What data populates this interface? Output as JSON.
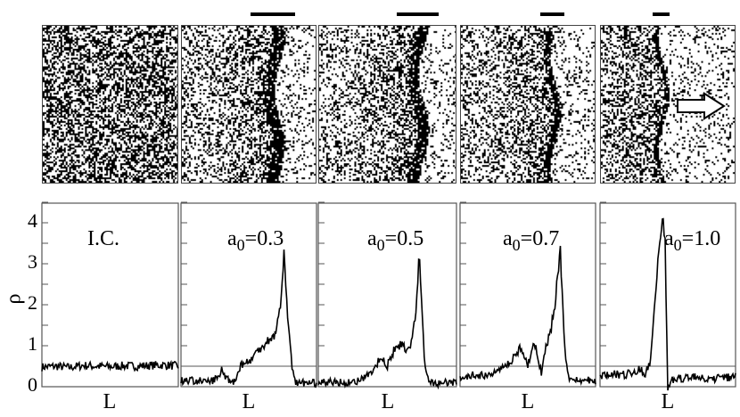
{
  "chart_data": [
    {
      "type": "line",
      "annotation": "I.C.",
      "ann_a": "",
      "ann_sub": "",
      "ann_val": "",
      "xlabel": "L",
      "ylabel": "ρ",
      "ylim": [
        0,
        4.5
      ],
      "yticks": [
        "0",
        "1",
        "2",
        "3",
        "4"
      ],
      "threshold": null,
      "x": [
        0,
        0.1,
        0.2,
        0.3,
        0.4,
        0.5,
        0.6,
        0.7,
        0.8,
        0.9,
        1
      ],
      "y": [
        0.48,
        0.5,
        0.47,
        0.52,
        0.5,
        0.49,
        0.51,
        0.5,
        0.52,
        0.53,
        0.5
      ]
    },
    {
      "type": "line",
      "annotation": "",
      "ann_a": "a",
      "ann_sub": "0",
      "ann_val": "=0.3",
      "xlabel": "L",
      "ylim": [
        0,
        4.5
      ],
      "threshold": 0.5,
      "width_bar": 0.33,
      "x": [
        0,
        0.1,
        0.2,
        0.27,
        0.3,
        0.34,
        0.4,
        0.44,
        0.5,
        0.55,
        0.6,
        0.65,
        0.7,
        0.73,
        0.76,
        0.79,
        0.82,
        0.85,
        0.9,
        1
      ],
      "y": [
        0.15,
        0.15,
        0.12,
        0.2,
        0.4,
        0.2,
        0.12,
        0.55,
        0.6,
        0.8,
        1.0,
        1.15,
        1.3,
        1.9,
        3.2,
        1.6,
        0.5,
        0.08,
        0.1,
        0.08
      ]
    },
    {
      "type": "line",
      "annotation": "",
      "ann_a": "a",
      "ann_sub": "0",
      "ann_val": "=0.5",
      "xlabel": "L",
      "ylim": [
        0,
        4.5
      ],
      "threshold": 0.5,
      "width_bar": 0.3,
      "x": [
        0,
        0.1,
        0.2,
        0.3,
        0.38,
        0.45,
        0.5,
        0.55,
        0.6,
        0.65,
        0.7,
        0.73,
        0.77,
        0.8,
        0.85,
        1
      ],
      "y": [
        0.1,
        0.12,
        0.1,
        0.15,
        0.3,
        0.7,
        0.5,
        0.9,
        1.05,
        0.8,
        1.6,
        3.15,
        0.6,
        0.1,
        0.08,
        0.1
      ]
    },
    {
      "type": "line",
      "annotation": "",
      "ann_a": "a",
      "ann_sub": "0",
      "ann_val": "=0.7",
      "xlabel": "L",
      "ylim": [
        0,
        4.5
      ],
      "threshold": 0.5,
      "width_bar": 0.18,
      "x": [
        0,
        0.1,
        0.2,
        0.3,
        0.38,
        0.45,
        0.5,
        0.55,
        0.6,
        0.63,
        0.67,
        0.7,
        0.74,
        0.77,
        0.8,
        0.85,
        1
      ],
      "y": [
        0.2,
        0.3,
        0.25,
        0.4,
        0.6,
        1.0,
        0.5,
        1.1,
        0.3,
        0.9,
        1.4,
        2.0,
        3.3,
        1.0,
        0.2,
        0.15,
        0.15
      ]
    },
    {
      "type": "line",
      "annotation": "",
      "ann_a": "a",
      "ann_sub": "0",
      "ann_val": "=1.0",
      "xlabel": "L",
      "ylim": [
        0,
        4.5
      ],
      "threshold": 0.5,
      "width_bar": 0.12,
      "x": [
        0,
        0.1,
        0.2,
        0.3,
        0.33,
        0.37,
        0.42,
        0.46,
        0.48,
        0.5,
        0.53,
        0.6,
        0.7,
        0.8,
        0.9,
        1
      ],
      "y": [
        0.25,
        0.3,
        0.3,
        0.45,
        0.25,
        0.6,
        2.8,
        4.25,
        3.5,
        -0.1,
        0.15,
        0.2,
        0.25,
        0.2,
        0.2,
        0.25
      ]
    }
  ],
  "snapshot_band_centers": [
    null,
    0.68,
    0.72,
    0.68,
    0.45
  ],
  "arrow_icon": "right-arrow"
}
